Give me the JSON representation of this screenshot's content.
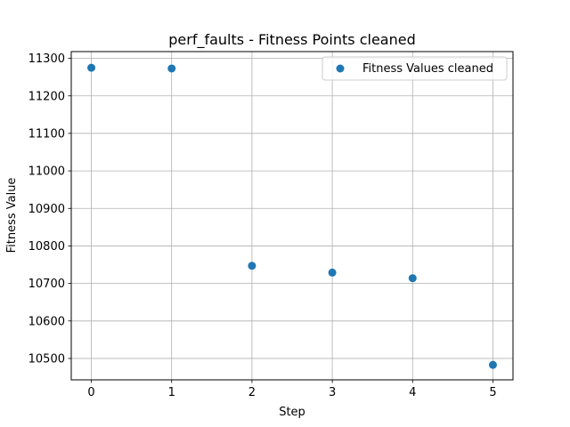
{
  "chart_data": {
    "type": "scatter",
    "title": "perf_faults - Fitness Points cleaned",
    "xlabel": "Step",
    "ylabel": "Fitness Value",
    "x": [
      0,
      1,
      2,
      3,
      4,
      5
    ],
    "series": [
      {
        "name": "Fitness Values cleaned",
        "values": [
          11275,
          11273,
          10747,
          10729,
          10714,
          10483
        ],
        "color": "#1f77b4"
      }
    ],
    "xlim": [
      -0.25,
      5.25
    ],
    "ylim": [
      10443,
      11318
    ],
    "xticks": [
      0,
      1,
      2,
      3,
      4,
      5
    ],
    "yticks": [
      10500,
      10600,
      10700,
      10800,
      10900,
      11000,
      11100,
      11200,
      11300
    ],
    "grid": true,
    "legend_position": "top-right"
  }
}
